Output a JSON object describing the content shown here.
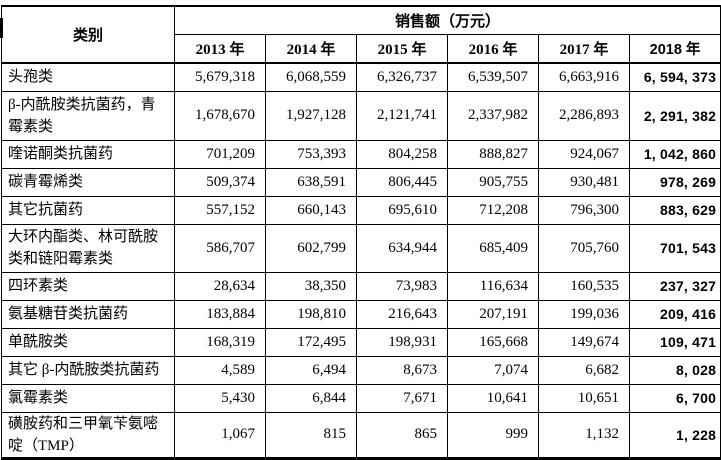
{
  "table": {
    "corner_header": "类别",
    "group_header": "销售额（万元）",
    "year_headers": [
      "2013 年",
      "2014 年",
      "2015 年",
      "2016 年",
      "2017 年",
      "2018 年"
    ],
    "rows": [
      {
        "category": "头孢类",
        "values": [
          "5,679,318",
          "6,068,559",
          "6,326,737",
          "6,539,507",
          "6,663,916",
          "6, 594, 373"
        ]
      },
      {
        "category": "β-内酰胺类抗菌药，青霉素类",
        "values": [
          "1,678,670",
          "1,927,128",
          "2,121,741",
          "2,337,982",
          "2,286,893",
          "2, 291, 382"
        ]
      },
      {
        "category": "喹诺酮类抗菌药",
        "values": [
          "701,209",
          "753,393",
          "804,258",
          "888,827",
          "924,067",
          "1, 042, 860"
        ]
      },
      {
        "category": "碳青霉烯类",
        "values": [
          "509,374",
          "638,591",
          "806,445",
          "905,755",
          "930,481",
          "978, 269"
        ]
      },
      {
        "category": "其它抗菌药",
        "values": [
          "557,152",
          "660,143",
          "695,610",
          "712,208",
          "796,300",
          "883, 629"
        ]
      },
      {
        "category": "大环内酯类、林可酰胺类和链阳霉素类",
        "values": [
          "586,707",
          "602,799",
          "634,944",
          "685,409",
          "705,760",
          "701, 543"
        ]
      },
      {
        "category": "四环素类",
        "values": [
          "28,634",
          "38,350",
          "73,983",
          "116,634",
          "160,535",
          "237, 327"
        ]
      },
      {
        "category": "氨基糖苷类抗菌药",
        "values": [
          "183,884",
          "198,810",
          "216,643",
          "207,191",
          "199,036",
          "209, 416"
        ]
      },
      {
        "category": "单酰胺类",
        "values": [
          "168,319",
          "172,495",
          "198,931",
          "165,668",
          "149,674",
          "109, 471"
        ]
      },
      {
        "category": "其它 β-内酰胺类抗菌药",
        "values": [
          "4,589",
          "6,494",
          "8,673",
          "7,074",
          "6,682",
          "8, 028"
        ]
      },
      {
        "category": "氯霉素类",
        "values": [
          "5,430",
          "6,844",
          "7,671",
          "10,641",
          "10,651",
          "6, 700"
        ]
      },
      {
        "category": "磺胺药和三甲氧苄氨嘧啶（TMP）",
        "values": [
          "1,067",
          "815",
          "865",
          "999",
          "1,132",
          "1, 228"
        ]
      }
    ]
  },
  "colors": {
    "text": "#000000",
    "border": "#000000",
    "background": "#ffffff"
  }
}
